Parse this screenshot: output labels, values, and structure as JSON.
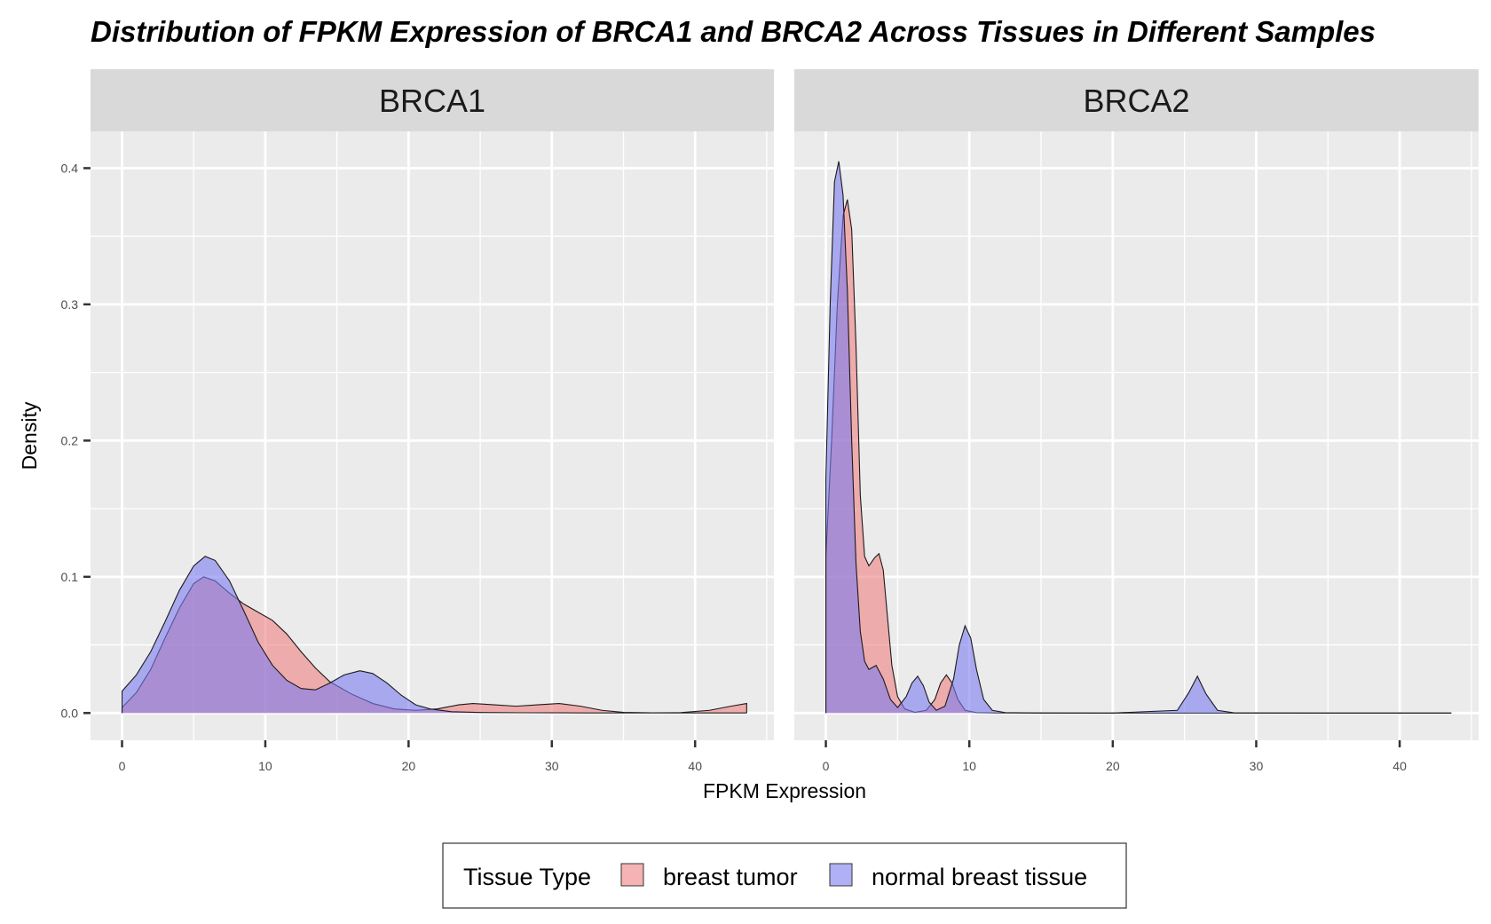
{
  "chart_data": {
    "type": "area",
    "subtype": "density",
    "title": "Distribution of FPKM Expression of BRCA1 and BRCA2 Across Tissues in Different Samples",
    "xlabel": "FPKM Expression",
    "ylabel": "Density",
    "xlim": [
      -2.2,
      45.5
    ],
    "ylim": [
      -0.02,
      0.427
    ],
    "x_ticks": [
      "0",
      "10",
      "20",
      "30",
      "40"
    ],
    "y_ticks": [
      "0.0",
      "0.1",
      "0.2",
      "0.3",
      "0.4"
    ],
    "legend": {
      "title": "Tissue Type",
      "position": "bottom",
      "entries": [
        {
          "label": "breast tumor",
          "color": "#F08080"
        },
        {
          "label": "normal breast tissue",
          "color": "#7B7BF0"
        }
      ]
    },
    "panels": [
      {
        "label": "BRCA1",
        "series": [
          {
            "name": "breast tumor",
            "color": "#F08080",
            "x": [
              0,
              1,
              2,
              3,
              4,
              5,
              5.7,
              6.5,
              7.5,
              8.5,
              9.5,
              10.5,
              11.5,
              12.5,
              13.5,
              14.5,
              16,
              17.5,
              19,
              20.5,
              22,
              23.5,
              24.5,
              26,
              27.5,
              29,
              30.5,
              32,
              33.5,
              35,
              37,
              39,
              41,
              42.5,
              43.6
            ],
            "y": [
              0.004,
              0.015,
              0.032,
              0.055,
              0.077,
              0.095,
              0.1,
              0.097,
              0.088,
              0.08,
              0.074,
              0.068,
              0.058,
              0.045,
              0.033,
              0.023,
              0.014,
              0.007,
              0.003,
              0.002,
              0.003,
              0.006,
              0.007,
              0.006,
              0.005,
              0.006,
              0.007,
              0.005,
              0.002,
              0.0005,
              0.0002,
              0.0003,
              0.002,
              0.005,
              0.007
            ]
          },
          {
            "name": "normal breast tissue",
            "color": "#7B7BF0",
            "x": [
              0,
              1,
              2,
              3,
              4,
              5,
              5.8,
              6.5,
              7.5,
              8.5,
              9.5,
              10.5,
              11.5,
              12.5,
              13.5,
              14.5,
              15.5,
              16.6,
              17.5,
              18.5,
              19.5,
              20.5,
              21.5,
              23,
              25,
              28,
              32,
              36,
              40,
              43.6
            ],
            "y": [
              0.016,
              0.028,
              0.045,
              0.067,
              0.09,
              0.108,
              0.115,
              0.112,
              0.097,
              0.075,
              0.052,
              0.035,
              0.024,
              0.018,
              0.017,
              0.022,
              0.028,
              0.031,
              0.029,
              0.022,
              0.013,
              0.006,
              0.003,
              0.001,
              0.0004,
              0.0002,
              0.0001,
              0.0001,
              0.0001,
              0.0001
            ]
          }
        ]
      },
      {
        "label": "BRCA2",
        "series": [
          {
            "name": "breast tumor",
            "color": "#F08080",
            "x": [
              0,
              0.4,
              0.8,
              1.2,
              1.5,
              1.8,
              2.1,
              2.4,
              2.7,
              3.0,
              3.4,
              3.7,
              4.0,
              4.3,
              4.6,
              5.0,
              5.5,
              6.2,
              7.0,
              7.6,
              8.0,
              8.4,
              8.8,
              9.2,
              9.7,
              10.5,
              12,
              15,
              20,
              25,
              30,
              35,
              40,
              43.6
            ],
            "y": [
              0.115,
              0.2,
              0.3,
              0.365,
              0.377,
              0.355,
              0.27,
              0.16,
              0.115,
              0.108,
              0.114,
              0.117,
              0.105,
              0.07,
              0.035,
              0.012,
              0.003,
              0.0005,
              0.002,
              0.01,
              0.022,
              0.028,
              0.022,
              0.01,
              0.002,
              0.0003,
              0.0001,
              0,
              0,
              0,
              0,
              0,
              0,
              0
            ]
          },
          {
            "name": "normal breast tissue",
            "color": "#7B7BF0",
            "x": [
              0,
              0.3,
              0.6,
              0.9,
              1.2,
              1.5,
              1.8,
              2.1,
              2.4,
              2.7,
              3.0,
              3.5,
              4.0,
              4.5,
              5.0,
              5.6,
              6.0,
              6.4,
              6.8,
              7.2,
              7.7,
              8.3,
              8.9,
              9.3,
              9.7,
              10.1,
              10.5,
              11.0,
              11.6,
              12.5,
              15,
              20,
              24.5,
              25.3,
              25.9,
              26.5,
              27.3,
              28.5,
              35,
              43.6
            ],
            "y": [
              0.172,
              0.3,
              0.39,
              0.405,
              0.38,
              0.31,
              0.2,
              0.11,
              0.06,
              0.038,
              0.032,
              0.035,
              0.025,
              0.01,
              0.004,
              0.012,
              0.022,
              0.027,
              0.02,
              0.008,
              0.002,
              0.005,
              0.025,
              0.05,
              0.064,
              0.055,
              0.032,
              0.01,
              0.002,
              0.0003,
              0.0001,
              0,
              0.002,
              0.015,
              0.027,
              0.014,
              0.002,
              0.0001,
              0,
              0
            ]
          }
        ]
      }
    ]
  }
}
